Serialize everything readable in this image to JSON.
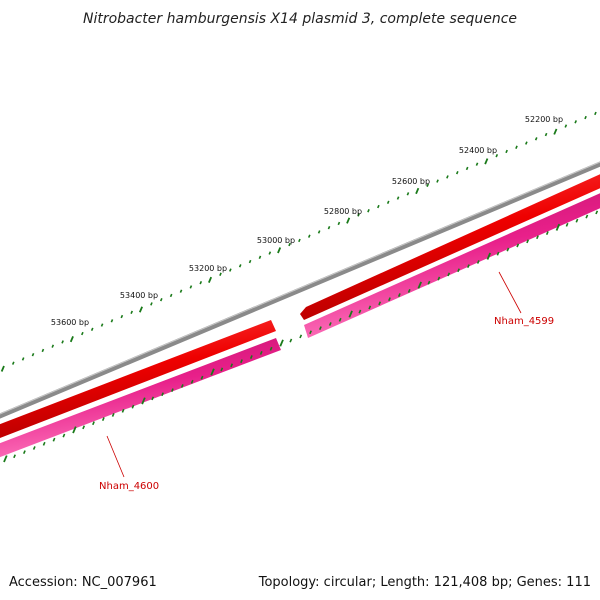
{
  "title": "Nitrobacter hamburgensis X14 plasmid 3, complete sequence",
  "footer": {
    "accession": "Accession: NC_007961",
    "stats": "Topology: circular; Length: 121,408 bp; Genes: 111"
  },
  "scale_ticks": [
    "52200 bp",
    "52400 bp",
    "52600 bp",
    "52800 bp",
    "53000 bp",
    "53200 bp",
    "53400 bp",
    "53600 bp"
  ],
  "genes": [
    {
      "name": "Nham_4599",
      "strand": "forward"
    },
    {
      "name": "Nham_4600",
      "strand": "forward"
    }
  ],
  "colors": {
    "backbone": "#7f7f7f",
    "cds_red": "#ee0000",
    "cds_magenta": "#e8208a",
    "ticks": "#1a7a1a",
    "gene_label": "#cc0000"
  }
}
